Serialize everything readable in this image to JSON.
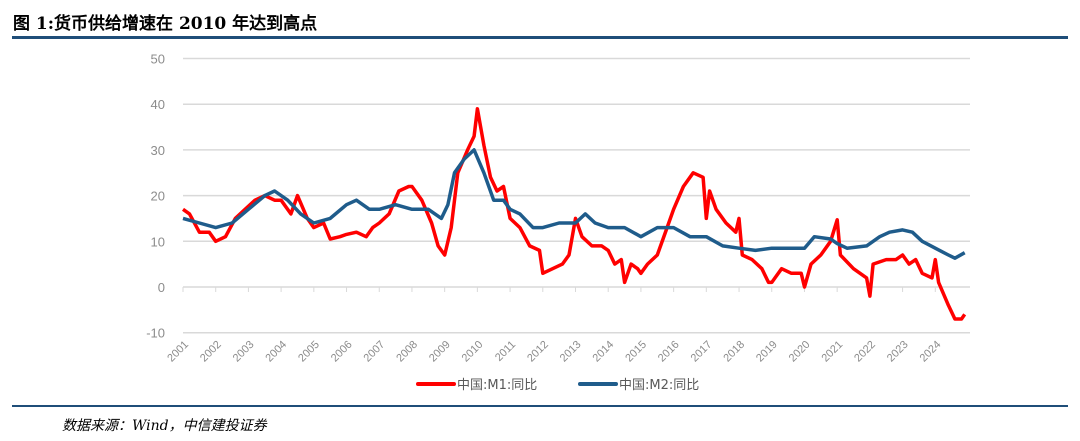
{
  "header": {
    "title": "图 1:货币供给增速在 2010 年达到高点"
  },
  "footer": {
    "source": "数据来源：Wind，中信建投证券"
  },
  "chart_data": {
    "type": "line",
    "title": "",
    "xlabel": "",
    "ylabel": "",
    "ylim": [
      -10,
      50
    ],
    "yticks": [
      50,
      40,
      30,
      20,
      10,
      0,
      -10
    ],
    "xticks": [
      "2001",
      "2002",
      "2003",
      "2004",
      "2005",
      "2006",
      "2007",
      "2008",
      "2009",
      "2010",
      "2011",
      "2012",
      "2013",
      "2014",
      "2015",
      "2016",
      "2017",
      "2018",
      "2019",
      "2020",
      "2021",
      "2022",
      "2023",
      "2024"
    ],
    "grid": true,
    "legend": "bottom",
    "series": [
      {
        "name": "中国:M1:同比",
        "color": "#ff0000",
        "points": [
          [
            2001.0,
            17
          ],
          [
            2001.2,
            16
          ],
          [
            2001.5,
            12
          ],
          [
            2001.8,
            12
          ],
          [
            2002.0,
            10
          ],
          [
            2002.3,
            11
          ],
          [
            2002.6,
            15
          ],
          [
            2002.9,
            17
          ],
          [
            2003.2,
            19
          ],
          [
            2003.5,
            20
          ],
          [
            2003.8,
            19
          ],
          [
            2004.0,
            19
          ],
          [
            2004.3,
            16
          ],
          [
            2004.5,
            20
          ],
          [
            2004.8,
            15
          ],
          [
            2005.0,
            13
          ],
          [
            2005.3,
            14
          ],
          [
            2005.5,
            10.5
          ],
          [
            2005.8,
            11
          ],
          [
            2006.0,
            11.5
          ],
          [
            2006.3,
            12
          ],
          [
            2006.6,
            11
          ],
          [
            2006.8,
            13
          ],
          [
            2007.0,
            14
          ],
          [
            2007.3,
            16
          ],
          [
            2007.6,
            21
          ],
          [
            2007.9,
            22
          ],
          [
            2008.0,
            22
          ],
          [
            2008.3,
            19
          ],
          [
            2008.6,
            14
          ],
          [
            2008.8,
            9
          ],
          [
            2009.0,
            7
          ],
          [
            2009.2,
            13
          ],
          [
            2009.4,
            25
          ],
          [
            2009.7,
            30
          ],
          [
            2009.9,
            33
          ],
          [
            2010.0,
            39
          ],
          [
            2010.2,
            31
          ],
          [
            2010.4,
            24
          ],
          [
            2010.6,
            21
          ],
          [
            2010.8,
            22
          ],
          [
            2011.0,
            15
          ],
          [
            2011.3,
            13
          ],
          [
            2011.6,
            9
          ],
          [
            2011.9,
            8
          ],
          [
            2012.0,
            3
          ],
          [
            2012.3,
            4
          ],
          [
            2012.6,
            5
          ],
          [
            2012.8,
            7
          ],
          [
            2013.0,
            15
          ],
          [
            2013.2,
            11
          ],
          [
            2013.5,
            9
          ],
          [
            2013.8,
            9
          ],
          [
            2014.0,
            8
          ],
          [
            2014.2,
            5
          ],
          [
            2014.4,
            6
          ],
          [
            2014.5,
            1
          ],
          [
            2014.7,
            5
          ],
          [
            2014.9,
            4
          ],
          [
            2015.0,
            3
          ],
          [
            2015.2,
            5
          ],
          [
            2015.5,
            7
          ],
          [
            2015.8,
            13
          ],
          [
            2016.0,
            17
          ],
          [
            2016.3,
            22
          ],
          [
            2016.6,
            25
          ],
          [
            2016.9,
            24
          ],
          [
            2017.0,
            15
          ],
          [
            2017.1,
            21
          ],
          [
            2017.3,
            17
          ],
          [
            2017.6,
            14
          ],
          [
            2017.9,
            12
          ],
          [
            2018.0,
            15
          ],
          [
            2018.1,
            7
          ],
          [
            2018.4,
            6
          ],
          [
            2018.7,
            4
          ],
          [
            2018.9,
            1
          ],
          [
            2019.0,
            1
          ],
          [
            2019.1,
            2
          ],
          [
            2019.3,
            4
          ],
          [
            2019.6,
            3
          ],
          [
            2019.9,
            3
          ],
          [
            2020.0,
            0
          ],
          [
            2020.2,
            5
          ],
          [
            2020.5,
            7
          ],
          [
            2020.8,
            10
          ],
          [
            2021.0,
            14.7
          ],
          [
            2021.1,
            7
          ],
          [
            2021.5,
            4
          ],
          [
            2021.9,
            2
          ],
          [
            2022.0,
            -2
          ],
          [
            2022.1,
            5
          ],
          [
            2022.5,
            6
          ],
          [
            2022.8,
            6
          ],
          [
            2023.0,
            7
          ],
          [
            2023.2,
            5
          ],
          [
            2023.4,
            6
          ],
          [
            2023.6,
            3
          ],
          [
            2023.9,
            2
          ],
          [
            2024.0,
            6
          ],
          [
            2024.1,
            1
          ],
          [
            2024.4,
            -4
          ],
          [
            2024.6,
            -7
          ],
          [
            2024.8,
            -7
          ],
          [
            2024.9,
            -6
          ]
        ]
      },
      {
        "name": "中国:M2:同比",
        "color": "#1f5c8b",
        "points": [
          [
            2001.0,
            15
          ],
          [
            2001.5,
            14
          ],
          [
            2002.0,
            13
          ],
          [
            2002.5,
            14
          ],
          [
            2003.0,
            17
          ],
          [
            2003.5,
            20
          ],
          [
            2003.8,
            21
          ],
          [
            2004.2,
            19
          ],
          [
            2004.6,
            16
          ],
          [
            2005.0,
            14
          ],
          [
            2005.5,
            15
          ],
          [
            2006.0,
            18
          ],
          [
            2006.3,
            19
          ],
          [
            2006.7,
            17
          ],
          [
            2007.0,
            17
          ],
          [
            2007.5,
            18
          ],
          [
            2008.0,
            17
          ],
          [
            2008.5,
            17
          ],
          [
            2008.9,
            15
          ],
          [
            2009.1,
            18
          ],
          [
            2009.3,
            25
          ],
          [
            2009.6,
            28
          ],
          [
            2009.9,
            30
          ],
          [
            2010.2,
            25
          ],
          [
            2010.5,
            19
          ],
          [
            2010.8,
            19
          ],
          [
            2011.0,
            17
          ],
          [
            2011.3,
            16
          ],
          [
            2011.7,
            13
          ],
          [
            2012.0,
            13
          ],
          [
            2012.5,
            14
          ],
          [
            2013.0,
            14
          ],
          [
            2013.3,
            16
          ],
          [
            2013.6,
            14
          ],
          [
            2014.0,
            13
          ],
          [
            2014.5,
            13
          ],
          [
            2015.0,
            11
          ],
          [
            2015.5,
            13
          ],
          [
            2016.0,
            13
          ],
          [
            2016.5,
            11
          ],
          [
            2017.0,
            11
          ],
          [
            2017.5,
            9
          ],
          [
            2018.0,
            8.5
          ],
          [
            2018.5,
            8
          ],
          [
            2019.0,
            8.5
          ],
          [
            2019.5,
            8.5
          ],
          [
            2020.0,
            8.5
          ],
          [
            2020.3,
            11
          ],
          [
            2020.8,
            10.5
          ],
          [
            2021.0,
            9.5
          ],
          [
            2021.3,
            8.5
          ],
          [
            2021.9,
            9
          ],
          [
            2022.3,
            11
          ],
          [
            2022.6,
            12
          ],
          [
            2023.0,
            12.5
          ],
          [
            2023.3,
            12
          ],
          [
            2023.6,
            10
          ],
          [
            2024.0,
            8.5
          ],
          [
            2024.4,
            7
          ],
          [
            2024.6,
            6.3
          ],
          [
            2024.9,
            7.5
          ]
        ]
      }
    ]
  }
}
